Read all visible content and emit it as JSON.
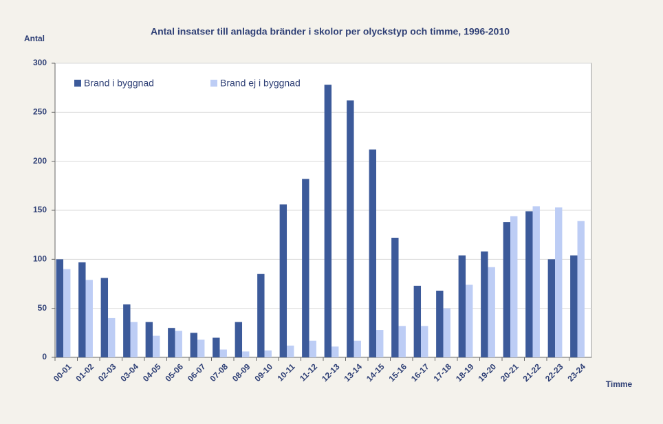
{
  "chart_data": {
    "type": "bar",
    "title": "Antal insatser till anlagda bränder i skolor per olyckstyp och timme, 1996-2010",
    "y_label": "Antal",
    "x_label": "Timme",
    "categories": [
      "00-01",
      "01-02",
      "02-03",
      "03-04",
      "04-05",
      "05-06",
      "06-07",
      "07-08",
      "08-09",
      "09-10",
      "10-11",
      "11-12",
      "12-13",
      "13-14",
      "14-15",
      "15-16",
      "16-17",
      "17-18",
      "18-19",
      "19-20",
      "20-21",
      "21-22",
      "22-23",
      "23-24"
    ],
    "series": [
      {
        "name": "Brand i byggnad",
        "color": "#3c5a9a",
        "values": [
          100,
          97,
          81,
          54,
          36,
          30,
          25,
          20,
          36,
          85,
          156,
          182,
          278,
          262,
          212,
          122,
          73,
          68,
          104,
          108,
          138,
          149,
          100,
          104
        ]
      },
      {
        "name": "Brand ej i byggnad",
        "color": "#bdcdf5",
        "values": [
          90,
          79,
          40,
          36,
          22,
          27,
          18,
          8,
          6,
          7,
          12,
          17,
          11,
          17,
          28,
          32,
          32,
          50,
          74,
          92,
          144,
          154,
          153,
          139
        ]
      }
    ],
    "ylim": [
      0,
      300
    ],
    "yticks": [
      0,
      50,
      100,
      150,
      200,
      250,
      300
    ],
    "grid": true,
    "legend": "top-left"
  }
}
